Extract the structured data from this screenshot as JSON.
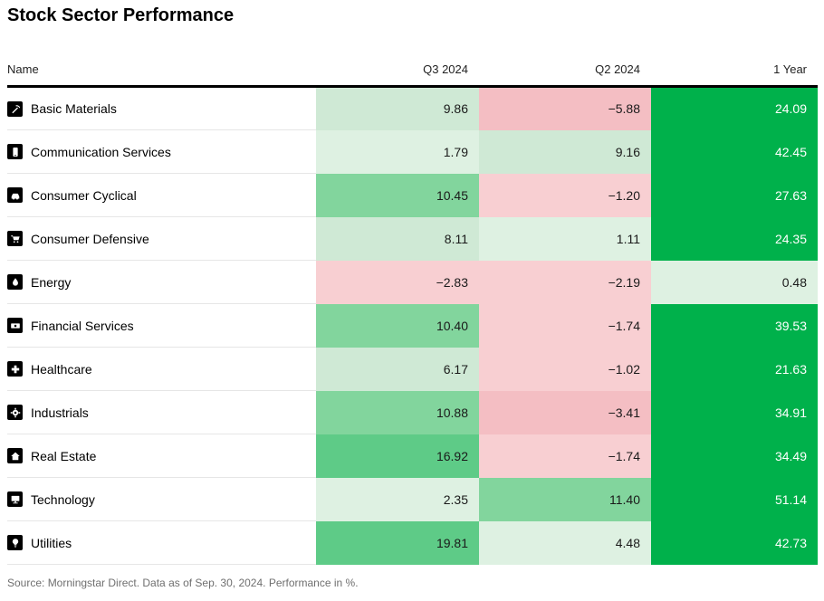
{
  "chart_data": {
    "type": "table",
    "title": "Stock Sector Performance",
    "columns": [
      "Name",
      "Q3 2024",
      "Q2 2024",
      "1 Year"
    ],
    "units": "%",
    "rows": [
      {
        "name": "Basic Materials",
        "icon": "pickaxe-icon",
        "values": [
          9.86,
          -5.88,
          24.09
        ]
      },
      {
        "name": "Communication Services",
        "icon": "phone-icon",
        "values": [
          1.79,
          9.16,
          42.45
        ]
      },
      {
        "name": "Consumer Cyclical",
        "icon": "car-icon",
        "values": [
          10.45,
          -1.2,
          27.63
        ]
      },
      {
        "name": "Consumer Defensive",
        "icon": "shopping-cart-icon",
        "values": [
          8.11,
          1.11,
          24.35
        ]
      },
      {
        "name": "Energy",
        "icon": "oil-drop-icon",
        "values": [
          -2.83,
          -2.19,
          0.48
        ]
      },
      {
        "name": "Financial Services",
        "icon": "banknote-icon",
        "values": [
          10.4,
          -1.74,
          39.53
        ]
      },
      {
        "name": "Healthcare",
        "icon": "medical-cross-icon",
        "values": [
          6.17,
          -1.02,
          21.63
        ]
      },
      {
        "name": "Industrials",
        "icon": "gear-icon",
        "values": [
          10.88,
          -3.41,
          34.91
        ]
      },
      {
        "name": "Real Estate",
        "icon": "house-icon",
        "values": [
          16.92,
          -1.74,
          34.49
        ]
      },
      {
        "name": "Technology",
        "icon": "monitor-icon",
        "values": [
          2.35,
          11.4,
          51.14
        ]
      },
      {
        "name": "Utilities",
        "icon": "lightbulb-icon",
        "values": [
          19.81,
          4.48,
          42.73
        ]
      }
    ],
    "palette": {
      "pos_strong": "#00b14b",
      "pos_medium_strong": "#5ecb87",
      "pos_medium": "#82d59d",
      "pos_light": "#cfe9d5",
      "pos_faint": "#def1e2",
      "neg_light": "#f8cfd2",
      "neg_strong": "#f4bec3",
      "text_on_strong": "#ffffff",
      "text_dark": "#1a1a1a"
    },
    "source_note": "Source: Morningstar Direct. Data as of Sep. 30, 2024. Performance in %."
  }
}
